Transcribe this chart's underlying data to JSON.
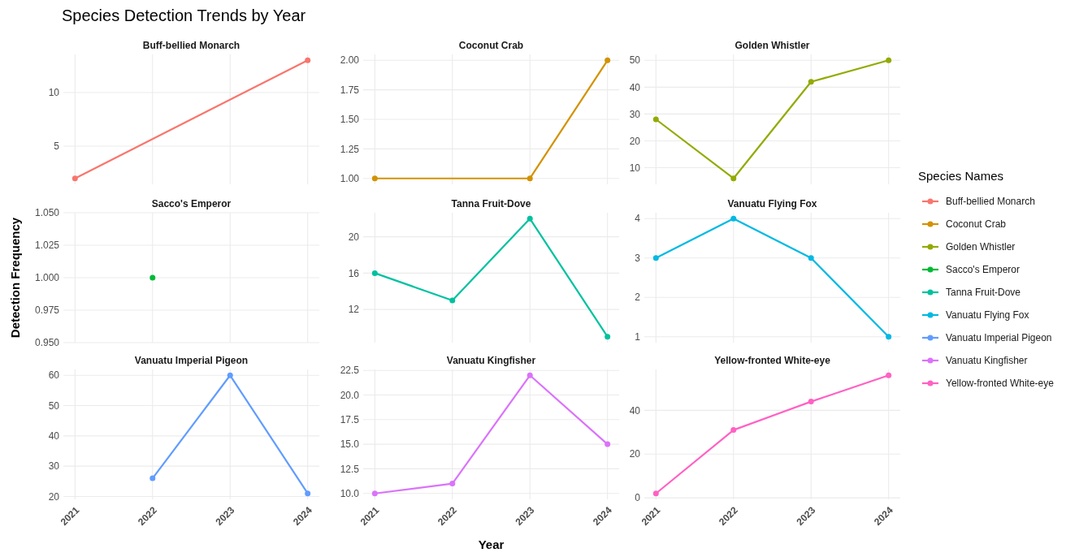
{
  "chart_data": [
    {
      "type": "line",
      "title": "Buff-bellied Monarch",
      "annotations": [
        "Species Detection Trends by Year"
      ],
      "legend_title": "Species Names",
      "x": [
        2021,
        2024
      ],
      "xlim": [
        2020.85,
        2024.15
      ],
      "xticks": [
        2021,
        2022,
        2023,
        2024
      ],
      "ylim": [
        1.45,
        13.55
      ],
      "yticks": [
        5,
        10
      ],
      "tick_labels": "y",
      "grid": true,
      "legend": "right",
      "marker": "circle",
      "line_style": "solid",
      "series": [
        {
          "name": "Buff-bellied Monarch",
          "color": "#f8766d",
          "values": [
            2,
            13
          ]
        }
      ]
    },
    {
      "type": "line",
      "title": "Coconut Crab",
      "x": [
        2021,
        2023,
        2024
      ],
      "xlim": [
        2020.85,
        2024.15
      ],
      "xticks": [
        2021,
        2022,
        2023,
        2024
      ],
      "ylim": [
        0.95,
        2.05
      ],
      "yticks": [
        {
          "value": 1,
          "label": "1.00"
        },
        {
          "value": 1.25,
          "label": "1.25"
        },
        {
          "value": 1.5,
          "label": "1.50"
        },
        {
          "value": 1.75,
          "label": "1.75"
        },
        {
          "value": 2,
          "label": "2.00"
        }
      ],
      "tick_labels": "y",
      "grid": true,
      "legend": "right",
      "marker": "circle",
      "line_style": "solid",
      "series": [
        {
          "name": "Coconut Crab",
          "color": "#d39200",
          "values": [
            1,
            1,
            2
          ]
        }
      ]
    },
    {
      "type": "line",
      "title": "Golden Whistler",
      "x": [
        2021,
        2022,
        2023,
        2024
      ],
      "xlim": [
        2020.85,
        2024.15
      ],
      "xticks": [
        2021,
        2022,
        2023,
        2024
      ],
      "ylim": [
        3.8,
        52.2
      ],
      "yticks": [
        10,
        20,
        30,
        40,
        50
      ],
      "tick_labels": "y",
      "grid": true,
      "legend": "right",
      "marker": "circle",
      "line_style": "solid",
      "series": [
        {
          "name": "Golden Whistler",
          "color": "#93aa00",
          "values": [
            28,
            6,
            42,
            50
          ]
        }
      ]
    },
    {
      "type": "line",
      "title": "Sacco's Emperor",
      "ylabel": "Detection Frequency",
      "x": [
        2022
      ],
      "xlim": [
        2020.85,
        2024.15
      ],
      "xticks": [
        2021,
        2022,
        2023,
        2024
      ],
      "ylim": [
        0.95,
        1.05
      ],
      "yticks": [
        {
          "value": 0.95,
          "label": "0.950"
        },
        {
          "value": 0.975,
          "label": "0.975"
        },
        {
          "value": 1,
          "label": "1.000"
        },
        {
          "value": 1.025,
          "label": "1.025"
        },
        {
          "value": 1.05,
          "label": "1.050"
        }
      ],
      "tick_labels": "y",
      "grid": true,
      "legend": "right",
      "marker": "circle",
      "line_style": "solid",
      "series": [
        {
          "name": "Sacco's Emperor",
          "color": "#00ba38",
          "values": [
            1
          ]
        }
      ]
    },
    {
      "type": "line",
      "title": "Tanna Fruit-Dove",
      "x": [
        2021,
        2022,
        2023,
        2024
      ],
      "xlim": [
        2020.85,
        2024.15
      ],
      "xticks": [
        2021,
        2022,
        2023,
        2024
      ],
      "ylim": [
        8.35,
        22.65
      ],
      "yticks": [
        12,
        16,
        20
      ],
      "tick_labels": "y",
      "grid": true,
      "legend": "right",
      "marker": "circle",
      "line_style": "solid",
      "series": [
        {
          "name": "Tanna Fruit-Dove",
          "color": "#00c19f",
          "values": [
            16,
            13,
            22,
            9
          ]
        }
      ]
    },
    {
      "type": "line",
      "title": "Vanuatu Flying Fox",
      "x": [
        2021,
        2022,
        2023,
        2024
      ],
      "xlim": [
        2020.85,
        2024.15
      ],
      "xticks": [
        2021,
        2022,
        2023,
        2024
      ],
      "ylim": [
        0.85,
        4.15
      ],
      "yticks": [
        1,
        2,
        3,
        4
      ],
      "tick_labels": "y",
      "grid": true,
      "legend": "right",
      "marker": "circle",
      "line_style": "solid",
      "series": [
        {
          "name": "Vanuatu Flying Fox",
          "color": "#00b9e3",
          "values": [
            3,
            4,
            3,
            1
          ]
        }
      ]
    },
    {
      "type": "line",
      "title": "Vanuatu Imperial Pigeon",
      "x": [
        2022,
        2023,
        2024
      ],
      "xlim": [
        2020.85,
        2024.15
      ],
      "xticks": [
        2021,
        2022,
        2023,
        2024
      ],
      "ylim": [
        19.05,
        61.95
      ],
      "yticks": [
        20,
        30,
        40,
        50,
        60
      ],
      "grid": true,
      "legend": "right",
      "marker": "circle",
      "line_style": "solid",
      "series": [
        {
          "name": "Vanuatu Imperial Pigeon",
          "color": "#619cff",
          "values": [
            26,
            60,
            21
          ]
        }
      ]
    },
    {
      "type": "line",
      "title": "Vanuatu Kingfisher",
      "xlabel": "Year",
      "x": [
        2021,
        2022,
        2023,
        2024
      ],
      "xlim": [
        2020.85,
        2024.15
      ],
      "xticks": [
        2021,
        2022,
        2023,
        2024
      ],
      "ylim": [
        9.4,
        22.6
      ],
      "yticks": [
        {
          "value": 10,
          "label": "10.0"
        },
        {
          "value": 12.5,
          "label": "12.5"
        },
        {
          "value": 15,
          "label": "15.0"
        },
        {
          "value": 17.5,
          "label": "17.5"
        },
        {
          "value": 20,
          "label": "20.0"
        },
        {
          "value": 22.5,
          "label": "22.5"
        }
      ],
      "grid": true,
      "legend": "right",
      "marker": "circle",
      "line_style": "solid",
      "series": [
        {
          "name": "Vanuatu Kingfisher",
          "color": "#db72fb",
          "values": [
            10,
            11,
            22,
            15
          ]
        }
      ]
    },
    {
      "type": "line",
      "title": "Yellow-fronted White-eye",
      "x": [
        2021,
        2022,
        2023,
        2024
      ],
      "xlim": [
        2020.85,
        2024.15
      ],
      "xticks": [
        2021,
        2022,
        2023,
        2024
      ],
      "ylim": [
        -0.7,
        58.7
      ],
      "yticks": [
        0,
        20,
        40
      ],
      "grid": true,
      "legend": "right",
      "marker": "circle",
      "line_style": "solid",
      "series": [
        {
          "name": "Yellow-fronted White-eye",
          "color": "#ff61c3",
          "values": [
            2,
            31,
            44,
            56
          ]
        }
      ]
    }
  ]
}
